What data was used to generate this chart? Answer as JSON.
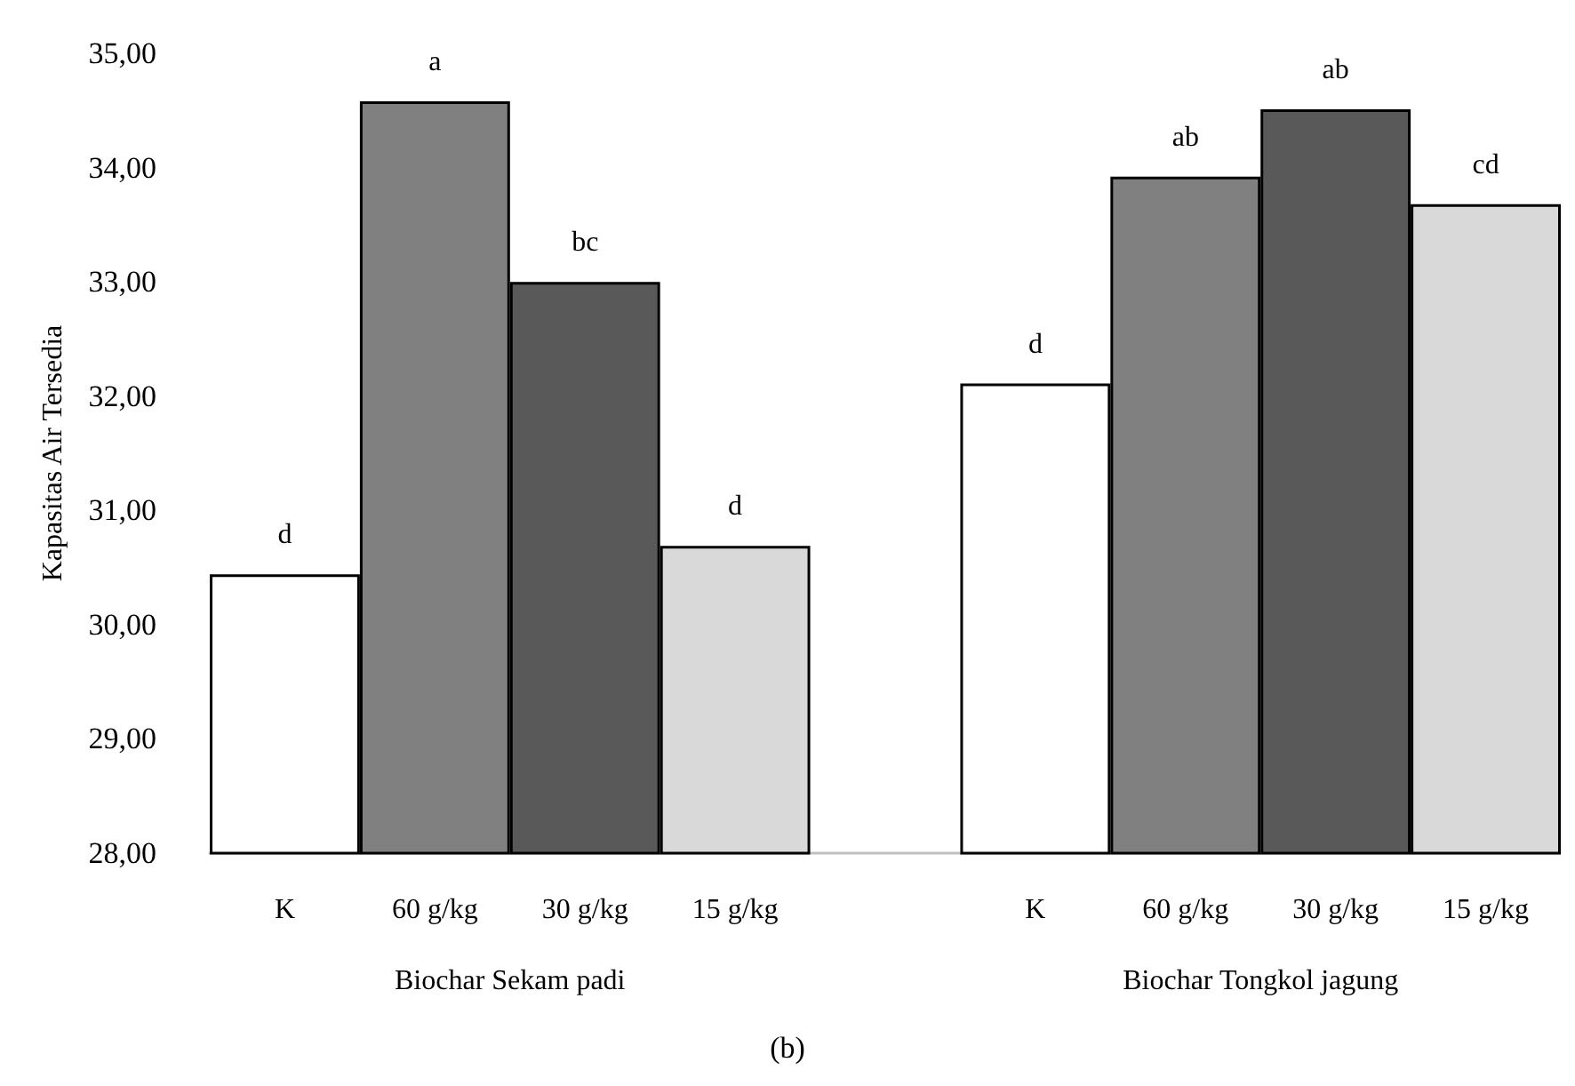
{
  "chart_data": {
    "type": "bar",
    "title": "(b)",
    "ylabel": "Kapasitas Air Tersedia",
    "categories": [
      "K",
      "60 g/kg",
      "30 g/kg",
      "15 g/kg",
      null,
      "K",
      "60 g/kg",
      "30 g/kg",
      "15 g/kg"
    ],
    "values": [
      30.44,
      34.58,
      33.0,
      30.69,
      null,
      32.11,
      33.92,
      34.51,
      33.68
    ],
    "colors": [
      "#ffffff",
      "#808080",
      "#595959",
      "#d9d9d9",
      null,
      "#ffffff",
      "#808080",
      "#595959",
      "#d9d9d9"
    ],
    "value_labels": [
      "d",
      "a",
      "bc",
      "d",
      null,
      "d",
      "ab",
      "ab",
      "cd"
    ],
    "annotations": [
      "Biochar Sekam padi",
      "Biochar Tongkol jagung"
    ],
    "ylim": [
      28,
      35
    ],
    "yticks": [
      {
        "value": 28,
        "label": "28,00"
      },
      {
        "value": 29,
        "label": "29,00"
      },
      {
        "value": 30,
        "label": "30,00"
      },
      {
        "value": 31,
        "label": "31,00"
      },
      {
        "value": 32,
        "label": "32,00"
      },
      {
        "value": 33,
        "label": "33,00"
      },
      {
        "value": 34,
        "label": "34,00"
      },
      {
        "value": 35,
        "label": "35,00"
      }
    ],
    "grid": false
  }
}
